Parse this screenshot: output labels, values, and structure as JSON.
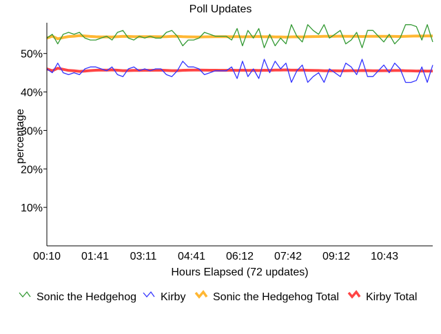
{
  "chart_data": {
    "type": "line",
    "title": "Poll Updates",
    "xlabel": "Hours Elapsed (72 updates)",
    "ylabel": "percentage",
    "ylim": [
      0,
      58
    ],
    "yticks": [
      10,
      20,
      30,
      40,
      50
    ],
    "ytick_labels": [
      "10%",
      "20%",
      "30%",
      "40%",
      "50%"
    ],
    "xtick_labels": [
      "00:10",
      "01:41",
      "03:11",
      "04:41",
      "06:12",
      "07:42",
      "09:12",
      "10:43"
    ],
    "legend_placement": "bottom",
    "series": [
      {
        "name": "Sonic the Hedgehog",
        "color": "#339933",
        "values": [
          54,
          55,
          52.5,
          55,
          55.5,
          55,
          55.5,
          54,
          53.5,
          53.5,
          54,
          54.5,
          53.5,
          55.5,
          56,
          54,
          53.5,
          54.5,
          54,
          54.5,
          54,
          54,
          55.5,
          56,
          54.5,
          52,
          53.5,
          53.5,
          54,
          55.5,
          55,
          54.5,
          54.5,
          54.5,
          53.5,
          56.5,
          52,
          56,
          54,
          56.5,
          51.5,
          55,
          52,
          54,
          52.5,
          57.5,
          54.5,
          53,
          57.5,
          56,
          55,
          57.5,
          54,
          55,
          56,
          52.5,
          53.5,
          55.5,
          51.5,
          56,
          56,
          54.5,
          53,
          55,
          52.5,
          54,
          57.5,
          57.5,
          57,
          53.5,
          57.5,
          53
        ]
      },
      {
        "name": "Kirby",
        "color": "#3333ff",
        "values": [
          46,
          45,
          47.5,
          45,
          44.5,
          45,
          44.5,
          46,
          46.5,
          46.5,
          46,
          45.5,
          46.5,
          44.5,
          44,
          46,
          46.5,
          45.5,
          46,
          45.5,
          46,
          46,
          44.5,
          44,
          45.5,
          48,
          46.5,
          46.5,
          46,
          44.5,
          45,
          45.5,
          45.5,
          45.5,
          46.5,
          43.5,
          48,
          44,
          46,
          43.5,
          48.5,
          45,
          48,
          46,
          47.5,
          42.5,
          45.5,
          47,
          42.5,
          44,
          45,
          42.5,
          46,
          45,
          44,
          47.5,
          46.5,
          44.5,
          48.5,
          44,
          44,
          45.5,
          47,
          45,
          47.5,
          46,
          42.5,
          42.5,
          43,
          46.5,
          42.5,
          47
        ]
      },
      {
        "name": "Sonic the Hedgehog Total",
        "color": "#ffb733",
        "derived": "running average"
      },
      {
        "name": "Kirby Total",
        "color": "#ff4444",
        "derived": "running average"
      }
    ]
  }
}
